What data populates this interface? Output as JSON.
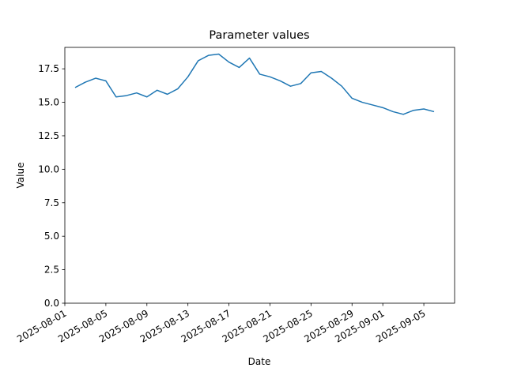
{
  "chart_data": {
    "type": "line",
    "title": "Parameter values",
    "x_label": "Date",
    "y_label": "Value",
    "x": [
      "2025-08-02",
      "2025-08-03",
      "2025-08-04",
      "2025-08-05",
      "2025-08-06",
      "2025-08-07",
      "2025-08-08",
      "2025-08-09",
      "2025-08-10",
      "2025-08-11",
      "2025-08-12",
      "2025-08-13",
      "2025-08-14",
      "2025-08-15",
      "2025-08-16",
      "2025-08-17",
      "2025-08-18",
      "2025-08-19",
      "2025-08-20",
      "2025-08-21",
      "2025-08-22",
      "2025-08-23",
      "2025-08-24",
      "2025-08-25",
      "2025-08-26",
      "2025-08-27",
      "2025-08-28",
      "2025-08-29",
      "2025-08-30",
      "2025-08-31",
      "2025-09-01",
      "2025-09-02",
      "2025-09-03",
      "2025-09-04",
      "2025-09-05",
      "2025-09-06"
    ],
    "series": [
      {
        "name": "Value",
        "color": "#1f77b4",
        "values": [
          16.1,
          16.5,
          16.8,
          16.6,
          15.4,
          15.5,
          15.7,
          15.4,
          15.9,
          15.6,
          16.0,
          16.9,
          18.1,
          18.5,
          18.6,
          18.0,
          17.6,
          18.3,
          17.1,
          16.9,
          16.6,
          16.2,
          16.4,
          17.2,
          17.3,
          16.8,
          16.2,
          15.3,
          15.0,
          14.8,
          14.6,
          14.3,
          14.1,
          14.4,
          14.5,
          14.3
        ]
      }
    ],
    "xlim": [
      "2025-08-01",
      "2025-09-08"
    ],
    "xticks": [
      "2025-08-01",
      "2025-08-05",
      "2025-08-09",
      "2025-08-13",
      "2025-08-17",
      "2025-08-21",
      "2025-08-25",
      "2025-08-29",
      "2025-09-01",
      "2025-09-05"
    ],
    "ylim": [
      0,
      19.1
    ],
    "yticks": [
      {
        "value": 0,
        "label": "0.0"
      },
      {
        "value": 2.5,
        "label": "2.5"
      },
      {
        "value": 5,
        "label": "5.0"
      },
      {
        "value": 7.5,
        "label": "7.5"
      },
      {
        "value": 10,
        "label": "10.0"
      },
      {
        "value": 12.5,
        "label": "12.5"
      },
      {
        "value": 15,
        "label": "15.0"
      },
      {
        "value": 17.5,
        "label": "17.5"
      }
    ],
    "grid": false
  }
}
